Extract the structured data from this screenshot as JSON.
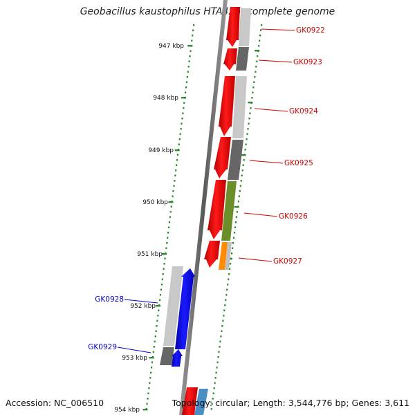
{
  "title": "Geobacillus kaustophilus HTA426, complete genome",
  "footer": {
    "accession": "Accession: NC_006510",
    "topology": "Topology: circular; Length: 3,544,776 bp; Genes: 3,611"
  },
  "colors": {
    "background": "#ffffff",
    "axis": "#7a7a7a",
    "tick": "#2f8a2f",
    "forward_gene": "#ff0000",
    "reverse_gene": "#0000ff",
    "forward_label": "#cc0000",
    "reverse_label": "#0000cc"
  },
  "ruler_labels": [
    "947 kbp",
    "948 kbp",
    "949 kbp",
    "950 kbp",
    "951 kbp",
    "952 kbp",
    "953 kbp",
    "954 kbp"
  ],
  "genes": [
    {
      "name": "GK0922",
      "strand": "+"
    },
    {
      "name": "GK0923",
      "strand": "+"
    },
    {
      "name": "GK0924",
      "strand": "+"
    },
    {
      "name": "GK0925",
      "strand": "+"
    },
    {
      "name": "GK0926",
      "strand": "+"
    },
    {
      "name": "GK0927",
      "strand": "+"
    },
    {
      "name": "GK0928",
      "strand": "-"
    },
    {
      "name": "GK0929",
      "strand": "-"
    }
  ]
}
